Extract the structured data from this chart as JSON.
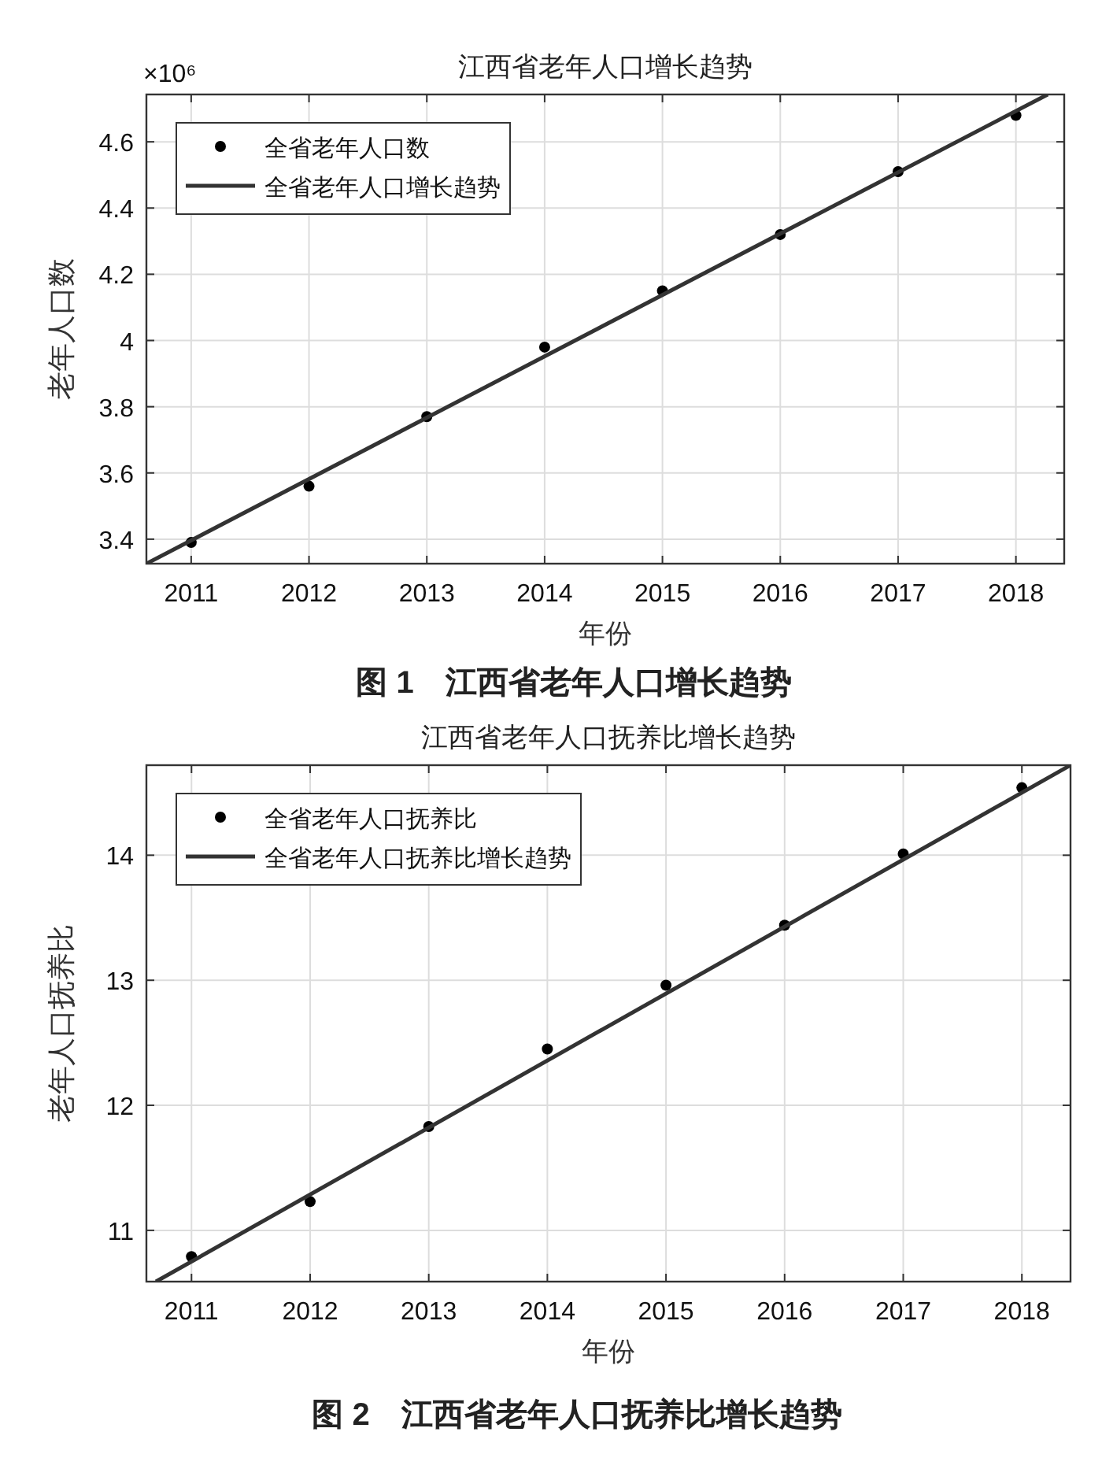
{
  "chart_data": [
    {
      "type": "scatter",
      "title": "江西省老年人口增长趋势",
      "xlabel": "年份",
      "ylabel": "老年人口数",
      "x": [
        2011,
        2012,
        2013,
        2014,
        2015,
        2016,
        2017,
        2018
      ],
      "series": [
        {
          "name": "全省老年人口数",
          "marker": "circle",
          "color": "#000000",
          "values": [
            3.39,
            3.56,
            3.77,
            3.98,
            4.15,
            4.32,
            4.51,
            4.68
          ]
        },
        {
          "name": "全省老年人口增长趋势",
          "type": "line",
          "line_style": "solid",
          "color": "#333333",
          "x": [
            2010.62,
            2018.27
          ],
          "values": [
            3.326,
            4.743
          ]
        }
      ],
      "xlim": [
        2010.62,
        2018.41
      ],
      "ylim": [
        3.326,
        4.743
      ],
      "xticks": [
        2011,
        2012,
        2013,
        2014,
        2015,
        2016,
        2017,
        2018
      ],
      "yticks": [
        3.4,
        3.6,
        3.8,
        4,
        4.2,
        4.4,
        4.6
      ],
      "grid": true,
      "legend": "top left",
      "annotations": [
        "×10⁶",
        "图 1　江西省老年人口增长趋势"
      ]
    },
    {
      "type": "scatter",
      "title": "江西省老年人口抚养比增长趋势",
      "xlabel": "年份",
      "ylabel": "老年人口抚养比",
      "x": [
        2011,
        2012,
        2013,
        2014,
        2015,
        2016,
        2017,
        2018
      ],
      "series": [
        {
          "name": "全省老年人口抚养比",
          "marker": "circle",
          "color": "#000000",
          "values": [
            10.79,
            11.23,
            11.83,
            12.45,
            12.96,
            13.44,
            14.01,
            14.54
          ]
        },
        {
          "name": "全省老年人口抚养比增长趋势",
          "type": "line",
          "line_style": "solid",
          "color": "#333333",
          "x": [
            2010.7,
            2018.41
          ],
          "values": [
            10.59,
            14.72
          ]
        }
      ],
      "xlim": [
        2010.62,
        2018.41
      ],
      "ylim": [
        10.59,
        14.72
      ],
      "xticks": [
        2011,
        2012,
        2013,
        2014,
        2015,
        2016,
        2017,
        2018
      ],
      "yticks": [
        11,
        12,
        13,
        14
      ],
      "grid": true,
      "legend": "top left",
      "annotations": [
        "图 2　江西省老年人口抚养比增长趋势"
      ]
    }
  ]
}
